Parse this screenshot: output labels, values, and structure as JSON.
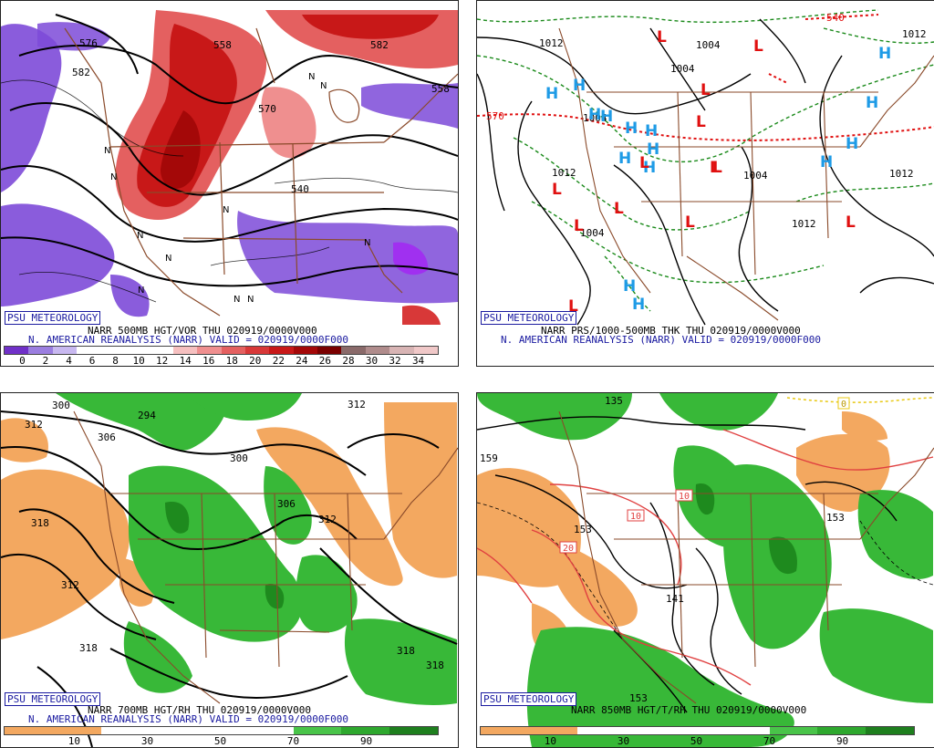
{
  "panels": [
    {
      "id": "p1",
      "badge": "PSU METEOROLOGY",
      "title": "NARR 500MB HGT/VOR THU 020919/0000V000",
      "subtitle": "N. AMERICAN REANALYSIS (NARR) VALID = 020919/0000F000",
      "scale_labels": [
        "0",
        "2",
        "4",
        "6",
        "8",
        "10",
        "12",
        "14",
        "16",
        "18",
        "20",
        "22",
        "24",
        "26",
        "28",
        "30",
        "32",
        "34"
      ],
      "scale_colors": [
        "#7030c8",
        "#9b7ee0",
        "#c8b8f0",
        "#ffffff",
        "#ffffff",
        "#ffffff",
        "#ffffff",
        "#f6c0c0",
        "#ef8f8f",
        "#e46060",
        "#d83838",
        "#c81818",
        "#a40808",
        "#7a0000",
        "#8a6a6a",
        "#b08c8c",
        "#d8b4b4",
        "#f0c8c8"
      ],
      "map_labels": [
        "576",
        "582",
        "558",
        "570",
        "582",
        "540",
        "558"
      ],
      "n_marks": [
        "N",
        "N",
        "N",
        "N",
        "N",
        "N",
        "N",
        "N",
        "N",
        "N",
        "N"
      ]
    },
    {
      "id": "p2",
      "badge": "PSU METEOROLOGY",
      "title": "NARR PRS/1000-500MB THK THU 020919/0000V000",
      "subtitle": "N. AMERICAN REANALYSIS (NARR) VALID = 020919/0000F000",
      "map_labels": [
        "1012",
        "1004",
        "1004",
        "570",
        "1012",
        "1004",
        "1012",
        "1004",
        "1012",
        "1004",
        "540",
        "1012"
      ],
      "highs": [
        "H",
        "H",
        "H",
        "H",
        "H",
        "H",
        "H",
        "H",
        "H",
        "H",
        "H",
        "H",
        "H",
        "H",
        "H"
      ],
      "lows": [
        "L",
        "L",
        "L",
        "L",
        "L",
        "L",
        "L",
        "L",
        "L",
        "L",
        "L",
        "L",
        "L"
      ]
    },
    {
      "id": "p3",
      "badge": "PSU METEOROLOGY",
      "title": "NARR 700MB HGT/RH THU 020919/0000V000",
      "subtitle": "N. AMERICAN REANALYSIS (NARR) VALID = 020919/0000F000",
      "scale_labels": [
        "10",
        "30",
        "50",
        "70",
        "90"
      ],
      "scale_colors": [
        "#f3a860",
        "#f3a860",
        "#ffffff",
        "#ffffff",
        "#ffffff",
        "#ffffff",
        "#49c449",
        "#2ea82e",
        "#1e7f1e"
      ],
      "map_labels": [
        "300",
        "312",
        "294",
        "306",
        "318",
        "300",
        "306",
        "312",
        "312",
        "318",
        "312",
        "318",
        "318"
      ]
    },
    {
      "id": "p4",
      "badge": "PSU METEOROLOGY",
      "title": "NARR 850MB HGT/T/RH THU 020919/0000V000",
      "subtitle": "",
      "scale_labels": [
        "10",
        "30",
        "50",
        "70",
        "90"
      ],
      "scale_colors": [
        "#f3a860",
        "#f3a860",
        "#ffffff",
        "#ffffff",
        "#ffffff",
        "#ffffff",
        "#49c449",
        "#2ea82e",
        "#1e7f1e"
      ],
      "map_labels": [
        "135",
        "159",
        "153",
        "153",
        "141",
        "153"
      ],
      "temp_boxes": [
        "10",
        "10",
        "20",
        "0"
      ]
    }
  ],
  "colors": {
    "border_brown": "#8a4a2a",
    "height_contour": "#000000",
    "thickness_green": "#1a8a1a",
    "thickness_red": "#e01010",
    "high_blue": "#1e9be6",
    "low_red": "#e01010",
    "rh_green": "#38b838",
    "rh_dark_green": "#1e8a1e",
    "rh_orange": "#f3a860",
    "vort_purple": "#7d4ad8",
    "vort_red": "#dc3a3a"
  }
}
